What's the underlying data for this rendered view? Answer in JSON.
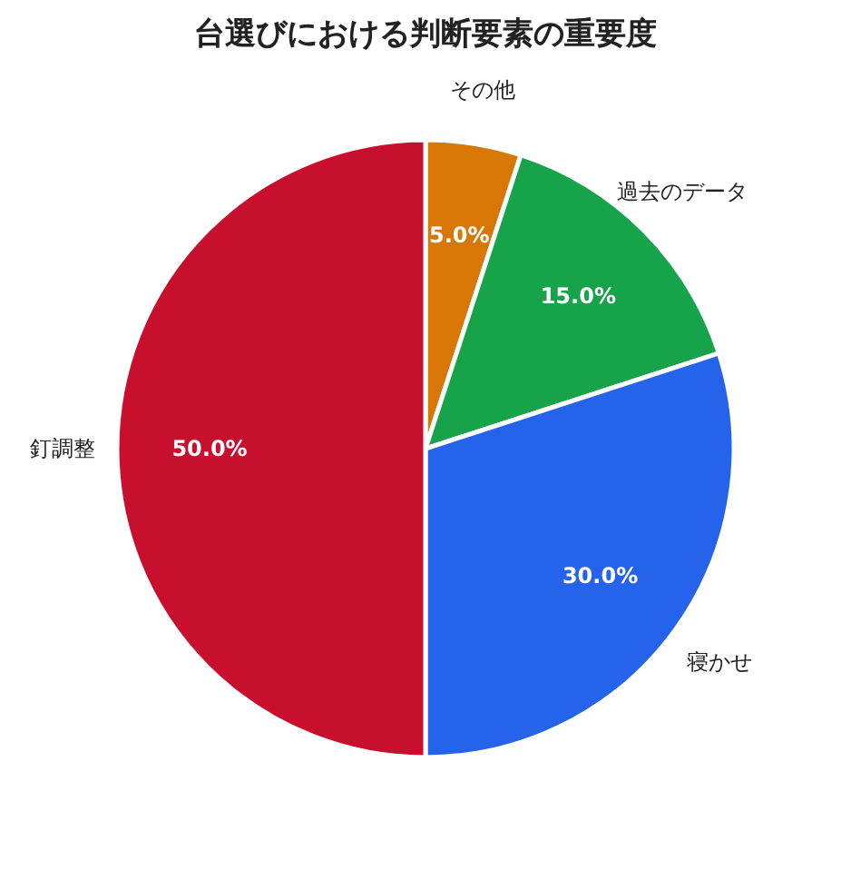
{
  "chart_data": {
    "type": "pie",
    "title": "台選びにおける判断要素の重要度",
    "categories": [
      "その他",
      "過去のデータ",
      "寝かせ",
      "釘調整"
    ],
    "values": [
      5,
      15,
      30,
      50
    ],
    "colors": [
      "#d97706",
      "#16a34a",
      "#2563eb",
      "#c8102e"
    ],
    "value_labels": [
      "5.0%",
      "15.0%",
      "30.0%",
      "50.0%"
    ],
    "legend": false
  }
}
